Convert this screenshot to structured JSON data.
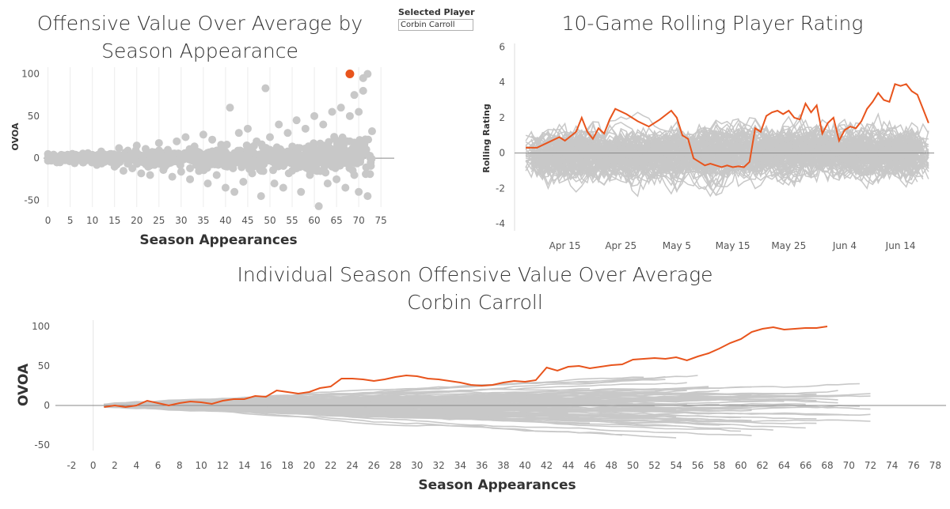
{
  "selector": {
    "label": "Selected Player",
    "value": "Corbin Carroll"
  },
  "highlight_color": "#e8541c",
  "background_color": "#c8c8c8",
  "chart_data": [
    {
      "type": "scatter",
      "title": "Offensive Value Over Average by Season Appearance",
      "xlabel": "Season Appearances",
      "ylabel": "OVOA",
      "xlim": [
        -1,
        78
      ],
      "ylim": [
        -58,
        108
      ],
      "xticks": [
        0,
        5,
        10,
        15,
        20,
        25,
        30,
        35,
        40,
        45,
        50,
        55,
        60,
        65,
        70,
        75
      ],
      "yticks": [
        -50,
        0,
        50,
        100
      ],
      "grid": "vertical",
      "highlight": {
        "name": "Corbin Carroll",
        "x": 68,
        "y": 100
      },
      "series": [
        {
          "role": "other players",
          "points": [
            [
              0,
              5
            ],
            [
              0,
              -3
            ],
            [
              1,
              2
            ],
            [
              2,
              -5
            ],
            [
              3,
              4
            ],
            [
              4,
              -2
            ],
            [
              5,
              1
            ],
            [
              6,
              -6
            ],
            [
              7,
              3
            ],
            [
              8,
              -4
            ],
            [
              9,
              6
            ],
            [
              10,
              2
            ],
            [
              11,
              -8
            ],
            [
              12,
              8
            ],
            [
              13,
              -3
            ],
            [
              14,
              5
            ],
            [
              15,
              -10
            ],
            [
              16,
              12
            ],
            [
              17,
              -15
            ],
            [
              18,
              9
            ],
            [
              19,
              -12
            ],
            [
              20,
              15
            ],
            [
              21,
              -18
            ],
            [
              22,
              11
            ],
            [
              23,
              -20
            ],
            [
              24,
              7
            ],
            [
              25,
              18
            ],
            [
              26,
              -14
            ],
            [
              27,
              10
            ],
            [
              28,
              -22
            ],
            [
              29,
              20
            ],
            [
              30,
              -16
            ],
            [
              31,
              25
            ],
            [
              32,
              -25
            ],
            [
              33,
              14
            ],
            [
              34,
              -10
            ],
            [
              35,
              28
            ],
            [
              36,
              -30
            ],
            [
              37,
              22
            ],
            [
              38,
              -20
            ],
            [
              39,
              16
            ],
            [
              40,
              -35
            ],
            [
              41,
              60
            ],
            [
              42,
              -40
            ],
            [
              43,
              30
            ],
            [
              44,
              -28
            ],
            [
              45,
              35
            ],
            [
              46,
              -18
            ],
            [
              47,
              20
            ],
            [
              48,
              -45
            ],
            [
              49,
              83
            ],
            [
              50,
              25
            ],
            [
              51,
              -30
            ],
            [
              52,
              40
            ],
            [
              53,
              -35
            ],
            [
              54,
              30
            ],
            [
              55,
              -15
            ],
            [
              56,
              45
            ],
            [
              57,
              -40
            ],
            [
              58,
              35
            ],
            [
              59,
              -20
            ],
            [
              60,
              50
            ],
            [
              61,
              -57
            ],
            [
              62,
              40
            ],
            [
              63,
              -30
            ],
            [
              64,
              55
            ],
            [
              65,
              -25
            ],
            [
              66,
              60
            ],
            [
              67,
              -35
            ],
            [
              68,
              50
            ],
            [
              69,
              75
            ],
            [
              70,
              -40
            ],
            [
              71,
              95
            ],
            [
              72,
              -45
            ],
            [
              73,
              32
            ],
            [
              72,
              100
            ],
            [
              71,
              80
            ],
            [
              70,
              55
            ],
            [
              69,
              -20
            ],
            [
              68,
              20
            ],
            [
              66,
              10
            ],
            [
              64,
              -10
            ],
            [
              62,
              15
            ],
            [
              60,
              -8
            ],
            [
              58,
              5
            ],
            [
              56,
              -12
            ],
            [
              54,
              8
            ],
            [
              52,
              -5
            ],
            [
              50,
              10
            ],
            [
              48,
              -15
            ],
            [
              46,
              12
            ],
            [
              44,
              -8
            ],
            [
              42,
              6
            ],
            [
              40,
              -3
            ],
            [
              38,
              9
            ],
            [
              36,
              -5
            ],
            [
              34,
              7
            ],
            [
              32,
              -12
            ],
            [
              30,
              4
            ],
            [
              28,
              -2
            ],
            [
              26,
              6
            ],
            [
              24,
              -8
            ],
            [
              22,
              3
            ],
            [
              20,
              -5
            ],
            [
              18,
              2
            ],
            [
              16,
              -4
            ],
            [
              14,
              1
            ],
            [
              12,
              -3
            ],
            [
              10,
              4
            ]
          ]
        }
      ]
    },
    {
      "type": "line",
      "title": "10-Game Rolling Player Rating",
      "xlabel": "",
      "ylabel": "Rolling Rating",
      "x_tick_labels": [
        "Apr 15",
        "Apr 25",
        "May 5",
        "May 15",
        "May 25",
        "Jun 4",
        "Jun 14"
      ],
      "x_tick_days": [
        15,
        25,
        35,
        45,
        55,
        65,
        75
      ],
      "x_domain_days": [
        6,
        81
      ],
      "ylim": [
        -4.4,
        6.2
      ],
      "yticks": [
        -4,
        -2,
        0,
        2,
        4,
        6
      ],
      "highlight": {
        "name": "Corbin Carroll",
        "days": [
          8,
          10,
          12,
          14,
          15,
          17,
          18,
          19,
          20,
          21,
          22,
          23,
          24,
          26,
          28,
          30,
          32,
          34,
          35,
          36,
          37,
          38,
          39,
          40,
          41,
          42,
          43,
          44,
          45,
          46,
          47,
          48,
          49,
          50,
          51,
          52,
          53,
          54,
          55,
          56,
          57,
          58,
          59,
          60,
          61,
          62,
          63,
          64,
          65,
          66,
          67,
          68,
          69,
          70,
          71,
          72,
          73,
          74,
          75,
          76,
          77,
          78,
          79,
          80
        ],
        "values": [
          0.3,
          0.3,
          0.6,
          0.9,
          0.7,
          1.2,
          2.0,
          1.2,
          0.8,
          1.4,
          1.1,
          1.9,
          2.5,
          2.2,
          1.8,
          1.5,
          1.9,
          2.4,
          2.0,
          1.0,
          0.8,
          -0.3,
          -0.5,
          -0.7,
          -0.6,
          -0.7,
          -0.8,
          -0.7,
          -0.8,
          -0.75,
          -0.8,
          -0.5,
          1.4,
          1.2,
          2.1,
          2.3,
          2.4,
          2.2,
          2.4,
          2.0,
          1.9,
          2.8,
          2.3,
          2.7,
          1.1,
          1.7,
          2.0,
          0.7,
          1.3,
          1.5,
          1.4,
          1.8,
          2.5,
          2.9,
          3.4,
          3.0,
          2.9,
          3.9,
          3.8,
          3.9,
          3.5,
          3.3,
          2.5,
          1.7
        ]
      },
      "background_series_count": 120
    },
    {
      "type": "line",
      "title": "Individual Season Offensive Value Over Average",
      "subtitle": "Corbin Carroll",
      "xlabel": "Season Appearances",
      "ylabel": "OVOA",
      "xlim": [
        -3.5,
        79
      ],
      "ylim": [
        -57,
        108
      ],
      "xticks": [
        -2,
        0,
        2,
        4,
        6,
        8,
        10,
        12,
        14,
        16,
        18,
        20,
        22,
        24,
        26,
        28,
        30,
        32,
        34,
        36,
        38,
        40,
        42,
        44,
        46,
        48,
        50,
        52,
        54,
        56,
        58,
        60,
        62,
        64,
        66,
        68,
        70,
        72,
        74,
        76,
        78
      ],
      "yticks": [
        -50,
        0,
        50,
        100
      ],
      "highlight": {
        "name": "Corbin Carroll",
        "x": [
          1,
          2,
          3,
          4,
          5,
          6,
          7,
          8,
          9,
          10,
          11,
          12,
          13,
          14,
          15,
          16,
          17,
          18,
          19,
          20,
          21,
          22,
          23,
          24,
          25,
          26,
          27,
          28,
          29,
          30,
          31,
          32,
          33,
          34,
          35,
          36,
          37,
          38,
          39,
          40,
          41,
          42,
          43,
          44,
          45,
          46,
          47,
          48,
          49,
          50,
          51,
          52,
          53,
          54,
          55,
          56,
          57,
          58,
          59,
          60,
          61,
          62,
          63,
          64,
          65,
          66,
          67,
          68
        ],
        "y": [
          -2,
          0,
          -2,
          0,
          6,
          3,
          0,
          3,
          5,
          4,
          2,
          6,
          8,
          8,
          12,
          11,
          19,
          17,
          15,
          17,
          22,
          24,
          34,
          34,
          33,
          31,
          33,
          36,
          38,
          37,
          34,
          33,
          31,
          29,
          26,
          25,
          26,
          29,
          31,
          30,
          32,
          48,
          44,
          49,
          50,
          47,
          49,
          51,
          52,
          58,
          59,
          60,
          59,
          61,
          57,
          62,
          66,
          72,
          79,
          84,
          93,
          97,
          99,
          96,
          97,
          98,
          98,
          100
        ]
      },
      "background_series_count": 140
    }
  ]
}
